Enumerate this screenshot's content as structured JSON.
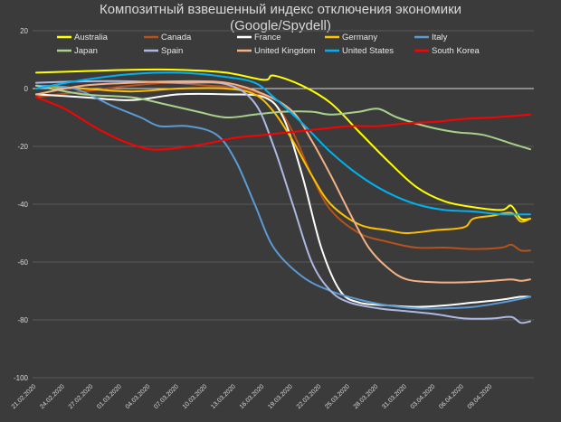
{
  "chart_data": {
    "type": "line",
    "title_lines": [
      "Композитный взвешенный индекс отключения экономики",
      "(Google/Spydell)"
    ],
    "xlabel": "",
    "ylabel": "",
    "ylim": [
      -100,
      20
    ],
    "y_ticks": [
      20,
      0,
      -20,
      -40,
      -60,
      -80,
      -100
    ],
    "x_tick_labels": [
      "21.02.2020",
      "24.02.2020",
      "27.02.2020",
      "01.03.2020",
      "04.03.2020",
      "07.03.2020",
      "10.03.2020",
      "13.03.2020",
      "16.03.2020",
      "19.03.2020",
      "22.03.2020",
      "25.03.2020",
      "28.03.2020",
      "31.03.2020",
      "03.04.2020",
      "06.04.2020",
      "09.04.2020"
    ],
    "x_count": 53,
    "grid": "horizontal",
    "legend_position": "top",
    "series": [
      {
        "name": "Australia",
        "color": "#ffff00",
        "points": [
          [
            0,
            5.5
          ],
          [
            5,
            6
          ],
          [
            10,
            6.5
          ],
          [
            15,
            6.5
          ],
          [
            20,
            5.5
          ],
          [
            24,
            3
          ],
          [
            25,
            4.5
          ],
          [
            28,
            1
          ],
          [
            31,
            -5
          ],
          [
            34,
            -15
          ],
          [
            37,
            -25
          ],
          [
            40,
            -34
          ],
          [
            43,
            -39
          ],
          [
            46,
            -41
          ],
          [
            49,
            -42
          ],
          [
            50,
            -40.5
          ],
          [
            51,
            -45
          ],
          [
            52,
            -45
          ]
        ]
      },
      {
        "name": "Canada",
        "color": "#b5521d",
        "points": [
          [
            0,
            -3
          ],
          [
            5,
            -1
          ],
          [
            10,
            1
          ],
          [
            14,
            2
          ],
          [
            18,
            1
          ],
          [
            22,
            0
          ],
          [
            25,
            -5
          ],
          [
            27,
            -15
          ],
          [
            29,
            -30
          ],
          [
            31,
            -42
          ],
          [
            34,
            -50
          ],
          [
            37,
            -53
          ],
          [
            40,
            -55
          ],
          [
            43,
            -55
          ],
          [
            46,
            -55.5
          ],
          [
            49,
            -55
          ],
          [
            50,
            -54
          ],
          [
            51,
            -56
          ],
          [
            52,
            -56
          ]
        ]
      },
      {
        "name": "France",
        "color": "#ffffff",
        "points": [
          [
            0,
            -2
          ],
          [
            5,
            -3
          ],
          [
            10,
            -4
          ],
          [
            15,
            -2
          ],
          [
            20,
            -2
          ],
          [
            24,
            -3
          ],
          [
            26,
            -10
          ],
          [
            28,
            -30
          ],
          [
            30,
            -55
          ],
          [
            32,
            -70
          ],
          [
            34,
            -74
          ],
          [
            37,
            -75
          ],
          [
            40,
            -75.5
          ],
          [
            43,
            -75
          ],
          [
            46,
            -74
          ],
          [
            49,
            -73
          ],
          [
            51,
            -72
          ],
          [
            52,
            -72
          ]
        ]
      },
      {
        "name": "Germany",
        "color": "#ffc000",
        "points": [
          [
            0,
            1
          ],
          [
            5,
            0
          ],
          [
            10,
            -1
          ],
          [
            15,
            0
          ],
          [
            20,
            0
          ],
          [
            23,
            -2
          ],
          [
            25,
            -8
          ],
          [
            27,
            -18
          ],
          [
            29,
            -30
          ],
          [
            31,
            -40
          ],
          [
            34,
            -47
          ],
          [
            37,
            -49
          ],
          [
            39,
            -50
          ],
          [
            42,
            -49
          ],
          [
            45,
            -48
          ],
          [
            46,
            -45
          ],
          [
            48,
            -44
          ],
          [
            50,
            -43
          ],
          [
            51,
            -46
          ],
          [
            52,
            -45
          ]
        ]
      },
      {
        "name": "Italy",
        "color": "#5b9bd5",
        "points": [
          [
            0,
            1
          ],
          [
            4,
            0
          ],
          [
            8,
            -6
          ],
          [
            11,
            -10
          ],
          [
            13,
            -13
          ],
          [
            16,
            -13
          ],
          [
            19,
            -16
          ],
          [
            21,
            -25
          ],
          [
            23,
            -40
          ],
          [
            25,
            -55
          ],
          [
            28,
            -65
          ],
          [
            31,
            -70
          ],
          [
            34,
            -73
          ],
          [
            37,
            -75
          ],
          [
            40,
            -76
          ],
          [
            43,
            -76
          ],
          [
            46,
            -75.5
          ],
          [
            49,
            -74
          ],
          [
            52,
            -72
          ]
        ]
      },
      {
        "name": "Japan",
        "color": "#a9d18e",
        "points": [
          [
            0,
            1
          ],
          [
            5,
            -2
          ],
          [
            10,
            -3
          ],
          [
            13,
            -5
          ],
          [
            17,
            -8
          ],
          [
            20,
            -10
          ],
          [
            23,
            -9
          ],
          [
            26,
            -8
          ],
          [
            29,
            -8
          ],
          [
            31,
            -9
          ],
          [
            34,
            -8
          ],
          [
            36,
            -7
          ],
          [
            38,
            -10
          ],
          [
            41,
            -13
          ],
          [
            44,
            -15
          ],
          [
            47,
            -16
          ],
          [
            50,
            -19
          ],
          [
            52,
            -21
          ]
        ]
      },
      {
        "name": "Spain",
        "color": "#adb9e3",
        "points": [
          [
            0,
            2
          ],
          [
            5,
            2.5
          ],
          [
            10,
            2.5
          ],
          [
            15,
            2
          ],
          [
            20,
            1.5
          ],
          [
            23,
            -5
          ],
          [
            25,
            -20
          ],
          [
            27,
            -40
          ],
          [
            29,
            -60
          ],
          [
            31,
            -70
          ],
          [
            33,
            -74
          ],
          [
            36,
            -76
          ],
          [
            39,
            -77
          ],
          [
            42,
            -78
          ],
          [
            45,
            -79.5
          ],
          [
            48,
            -79.5
          ],
          [
            50,
            -79
          ],
          [
            51,
            -81
          ],
          [
            52,
            -80.5
          ]
        ]
      },
      {
        "name": "United Kingdom",
        "color": "#f4b183",
        "points": [
          [
            0,
            -2
          ],
          [
            5,
            1
          ],
          [
            10,
            2
          ],
          [
            15,
            2.5
          ],
          [
            20,
            2
          ],
          [
            24,
            -2
          ],
          [
            27,
            -8
          ],
          [
            29,
            -18
          ],
          [
            31,
            -30
          ],
          [
            33,
            -43
          ],
          [
            35,
            -55
          ],
          [
            37,
            -62
          ],
          [
            39,
            -66
          ],
          [
            42,
            -67
          ],
          [
            45,
            -67
          ],
          [
            48,
            -66.5
          ],
          [
            50,
            -66
          ],
          [
            51,
            -66.5
          ],
          [
            52,
            -66
          ]
        ]
      },
      {
        "name": "United States",
        "color": "#00b0f0",
        "points": [
          [
            0,
            0
          ],
          [
            5,
            3
          ],
          [
            10,
            5
          ],
          [
            15,
            5.5
          ],
          [
            20,
            4
          ],
          [
            23,
            2
          ],
          [
            25,
            -3
          ],
          [
            28,
            -12
          ],
          [
            31,
            -22
          ],
          [
            34,
            -30
          ],
          [
            37,
            -36
          ],
          [
            40,
            -40
          ],
          [
            43,
            -42
          ],
          [
            46,
            -42.5
          ],
          [
            49,
            -43.5
          ],
          [
            52,
            -43.5
          ]
        ]
      },
      {
        "name": "South Korea",
        "color": "#ff0000",
        "points": [
          [
            0,
            -3
          ],
          [
            3,
            -7
          ],
          [
            6,
            -13
          ],
          [
            9,
            -18
          ],
          [
            12,
            -21
          ],
          [
            15,
            -20.5
          ],
          [
            18,
            -19
          ],
          [
            21,
            -17
          ],
          [
            24,
            -16
          ],
          [
            27,
            -15
          ],
          [
            30,
            -14
          ],
          [
            33,
            -13
          ],
          [
            36,
            -13
          ],
          [
            39,
            -12
          ],
          [
            42,
            -11.5
          ],
          [
            45,
            -10.5
          ],
          [
            48,
            -10
          ],
          [
            52,
            -9
          ]
        ]
      }
    ]
  }
}
